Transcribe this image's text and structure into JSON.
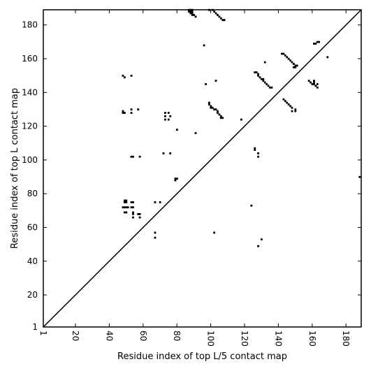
{
  "chart_data": {
    "type": "heatmap",
    "title": "",
    "xlabel": "Residue index of top L/5 contact map",
    "ylabel": "Residue index of top L contact map",
    "xlim": [
      1,
      189
    ],
    "ylim": [
      1,
      189
    ],
    "xticks": [
      1,
      20,
      40,
      60,
      80,
      100,
      120,
      140,
      160,
      180
    ],
    "yticks": [
      1,
      20,
      40,
      60,
      80,
      100,
      120,
      140,
      160,
      180
    ],
    "grid": false,
    "diagonal_line": true,
    "cell_color": "#000000",
    "cells": [
      [
        87,
        189
      ],
      [
        88,
        189
      ],
      [
        89,
        189
      ],
      [
        87,
        188
      ],
      [
        88,
        188
      ],
      [
        89,
        188
      ],
      [
        88,
        187
      ],
      [
        89,
        187
      ],
      [
        89,
        186
      ],
      [
        90,
        186
      ],
      [
        91,
        185
      ],
      [
        99,
        189
      ],
      [
        101,
        189
      ],
      [
        102,
        188
      ],
      [
        103,
        187
      ],
      [
        104,
        186
      ],
      [
        105,
        185
      ],
      [
        106,
        184
      ],
      [
        107,
        183
      ],
      [
        108,
        183
      ],
      [
        96,
        168
      ],
      [
        48,
        150
      ],
      [
        49,
        149
      ],
      [
        53,
        150
      ],
      [
        97,
        145
      ],
      [
        103,
        147
      ],
      [
        48,
        128
      ],
      [
        48,
        129
      ],
      [
        49,
        128
      ],
      [
        53,
        130
      ],
      [
        53,
        128
      ],
      [
        57,
        130
      ],
      [
        73,
        128
      ],
      [
        75,
        128
      ],
      [
        73,
        126
      ],
      [
        73,
        124
      ],
      [
        75,
        124
      ],
      [
        76,
        126
      ],
      [
        80,
        118
      ],
      [
        91,
        116
      ],
      [
        118,
        124
      ],
      [
        99,
        134
      ],
      [
        99,
        133
      ],
      [
        100,
        132
      ],
      [
        100,
        131
      ],
      [
        101,
        131
      ],
      [
        102,
        130
      ],
      [
        103,
        130
      ],
      [
        104,
        129
      ],
      [
        104,
        128
      ],
      [
        105,
        127
      ],
      [
        106,
        126
      ],
      [
        106,
        125
      ],
      [
        107,
        125
      ],
      [
        126,
        152
      ],
      [
        127,
        152
      ],
      [
        128,
        151
      ],
      [
        128,
        150
      ],
      [
        129,
        149
      ],
      [
        130,
        148
      ],
      [
        131,
        148
      ],
      [
        131,
        147
      ],
      [
        132,
        146
      ],
      [
        133,
        145
      ],
      [
        134,
        144
      ],
      [
        135,
        143
      ],
      [
        136,
        143
      ],
      [
        132,
        158
      ],
      [
        142,
        163
      ],
      [
        143,
        163
      ],
      [
        144,
        162
      ],
      [
        145,
        161
      ],
      [
        146,
        160
      ],
      [
        147,
        159
      ],
      [
        148,
        158
      ],
      [
        149,
        157
      ],
      [
        150,
        156
      ],
      [
        151,
        156
      ],
      [
        150,
        155
      ],
      [
        149,
        155
      ],
      [
        143,
        136
      ],
      [
        144,
        135
      ],
      [
        145,
        134
      ],
      [
        146,
        133
      ],
      [
        147,
        132
      ],
      [
        148,
        131
      ],
      [
        148,
        129
      ],
      [
        150,
        130
      ],
      [
        150,
        129
      ],
      [
        158,
        147
      ],
      [
        159,
        146
      ],
      [
        160,
        145
      ],
      [
        161,
        145
      ],
      [
        161,
        146
      ],
      [
        162,
        144
      ],
      [
        163,
        143
      ],
      [
        163,
        145
      ],
      [
        161,
        147
      ],
      [
        161,
        169
      ],
      [
        162,
        169
      ],
      [
        163,
        170
      ],
      [
        164,
        170
      ],
      [
        169,
        161
      ],
      [
        53,
        102
      ],
      [
        54,
        102
      ],
      [
        58,
        102
      ],
      [
        72,
        104
      ],
      [
        76,
        104
      ],
      [
        79,
        89
      ],
      [
        80,
        89
      ],
      [
        79,
        88
      ],
      [
        126,
        107
      ],
      [
        126,
        106
      ],
      [
        128,
        104
      ],
      [
        128,
        102
      ],
      [
        188,
        90
      ],
      [
        49,
        76
      ],
      [
        50,
        76
      ],
      [
        49,
        75
      ],
      [
        50,
        75
      ],
      [
        53,
        75
      ],
      [
        54,
        75
      ],
      [
        67,
        75
      ],
      [
        70,
        75
      ],
      [
        48,
        72
      ],
      [
        49,
        72
      ],
      [
        50,
        72
      ],
      [
        51,
        72
      ],
      [
        53,
        72
      ],
      [
        54,
        72
      ],
      [
        49,
        69
      ],
      [
        50,
        69
      ],
      [
        54,
        69
      ],
      [
        54,
        68
      ],
      [
        57,
        68
      ],
      [
        58,
        68
      ],
      [
        54,
        66
      ],
      [
        58,
        66
      ],
      [
        124,
        73
      ],
      [
        102,
        57
      ],
      [
        67,
        57
      ],
      [
        67,
        54
      ],
      [
        130,
        53
      ],
      [
        128,
        49
      ]
    ]
  }
}
